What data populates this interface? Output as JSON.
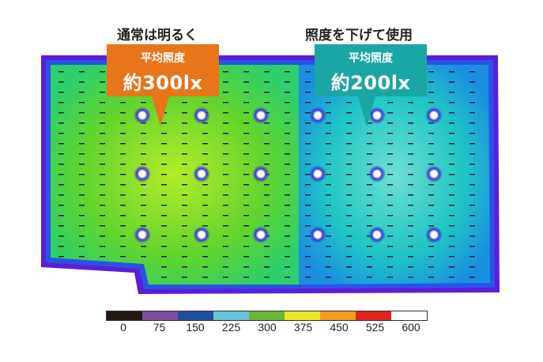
{
  "headings": {
    "left": "通常は明るく",
    "right": "照度を下げて使用"
  },
  "callouts": {
    "left": {
      "title": "平均照度",
      "value": "約300lx",
      "color": "#e8751a"
    },
    "right": {
      "title": "平均照度",
      "value": "約200lx",
      "color": "#1aa7a4"
    }
  },
  "heatmap": {
    "left_zone_color": "#5ccf2a",
    "right_zone_color": "#18c4c0",
    "border_color": "#5a1fd6",
    "light_rows": 3,
    "light_columns_per_zone": 3
  },
  "legend": {
    "colors": [
      "#231815",
      "#7b4ea1",
      "#1d4f9f",
      "#64c3d6",
      "#69b635",
      "#eae52a",
      "#f39c1a",
      "#e2231a",
      "#ffffff"
    ],
    "labels": [
      "0",
      "75",
      "150",
      "225",
      "300",
      "375",
      "450",
      "525",
      "600"
    ]
  }
}
